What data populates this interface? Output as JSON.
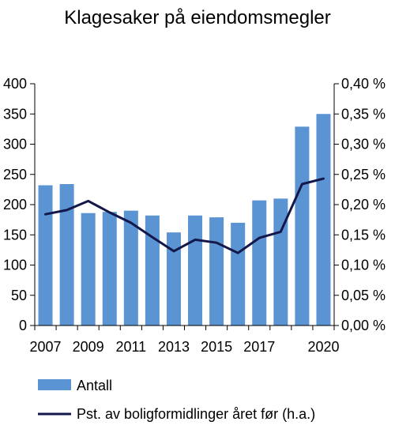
{
  "chart_data": {
    "type": "bar",
    "title": "Klagesaker på eiendomsmegler",
    "x": [
      2007,
      2008,
      2009,
      2010,
      2011,
      2012,
      2013,
      2014,
      2015,
      2016,
      2017,
      2018,
      2019,
      2020
    ],
    "x_tick_labels": [
      "2007",
      "2009",
      "2011",
      "2013",
      "2015",
      "2017",
      "2020"
    ],
    "ylim_left": [
      0,
      400
    ],
    "ylim_right": [
      0,
      0.4
    ],
    "y_ticks_left": [
      "0",
      "50",
      "100",
      "150",
      "200",
      "250",
      "300",
      "350",
      "400"
    ],
    "y_ticks_right": [
      "0,00 %",
      "0,05 %",
      "0,10 %",
      "0,15 %",
      "0,20 %",
      "0,25 %",
      "0,30 %",
      "0,35 %",
      "0,40 %"
    ],
    "grid": false,
    "legend_placement": "bottom",
    "series": [
      {
        "name": "Antall",
        "type": "bar",
        "axis": "left",
        "color": "#5b94d3",
        "values": [
          232,
          234,
          186,
          188,
          190,
          182,
          154,
          182,
          179,
          170,
          207,
          210,
          329,
          350
        ]
      },
      {
        "name": "Pst. av boligformidlinger året før (h.a.)",
        "type": "line",
        "axis": "right",
        "color": "#14174a",
        "values": [
          0.184,
          0.191,
          0.206,
          0.187,
          0.17,
          0.146,
          0.123,
          0.142,
          0.137,
          0.12,
          0.145,
          0.155,
          0.234,
          0.243
        ]
      }
    ]
  }
}
